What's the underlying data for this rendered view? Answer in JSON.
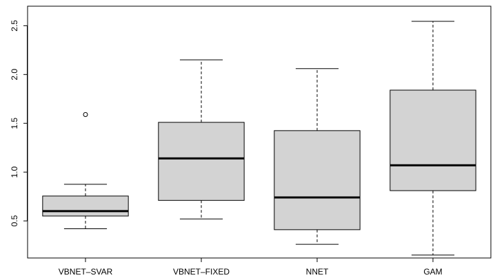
{
  "chart_data": {
    "type": "boxplot",
    "title": "",
    "xlabel": "",
    "ylabel": "",
    "categories": [
      "VBNET–SVAR",
      "VBNET–FIXED",
      "NNET",
      "GAM"
    ],
    "yticks": [
      "0.5",
      "1.0",
      "1.5",
      "2.0",
      "2.5"
    ],
    "ylim": [
      0.12,
      2.7
    ],
    "boxes": [
      {
        "whisker_low": 0.42,
        "q1": 0.55,
        "median": 0.6,
        "q3": 0.755,
        "whisker_high": 0.875,
        "outliers": [
          1.59
        ]
      },
      {
        "whisker_low": 0.52,
        "q1": 0.71,
        "median": 1.14,
        "q3": 1.51,
        "whisker_high": 2.15,
        "outliers": []
      },
      {
        "whisker_low": 0.26,
        "q1": 0.41,
        "median": 0.74,
        "q3": 1.425,
        "whisker_high": 2.06,
        "outliers": []
      },
      {
        "whisker_low": 0.15,
        "q1": 0.81,
        "median": 1.07,
        "q3": 1.84,
        "whisker_high": 2.545,
        "outliers": []
      }
    ],
    "box_fill": "#d3d3d3",
    "line_color": "#000000",
    "grid": false
  }
}
